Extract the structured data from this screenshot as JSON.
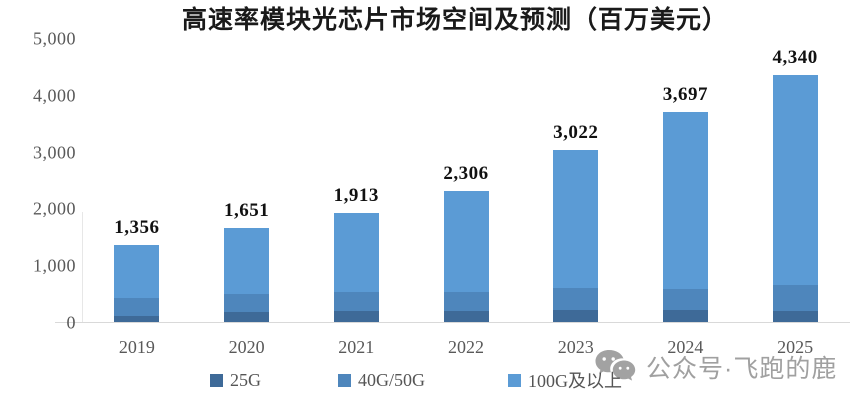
{
  "title": "高速率模块光芯片市场空间及预测（百万美元）",
  "watermark": {
    "icon": "wechat-icon",
    "text": "公众号·飞跑的鹿"
  },
  "chart_data": {
    "type": "bar",
    "stacked": true,
    "title": "高速率模块光芯片市场空间及预测（百万美元）",
    "categories": [
      "2019",
      "2020",
      "2021",
      "2022",
      "2023",
      "2024",
      "2025"
    ],
    "series": [
      {
        "name": "25G",
        "color": "#3E6A98",
        "values": [
          100,
          170,
          190,
          195,
          210,
          210,
          195
        ]
      },
      {
        "name": "40G/50G",
        "color": "#4E86BC",
        "values": [
          330,
          320,
          335,
          340,
          385,
          370,
          460
        ]
      },
      {
        "name": "100G及以上",
        "color": "#5B9BD5",
        "values": [
          926,
          1161,
          1388,
          1771,
          2427,
          3117,
          3685
        ]
      }
    ],
    "totals": [
      1356,
      1651,
      1913,
      2306,
      3022,
      3697,
      4340
    ],
    "total_labels": [
      "1,356",
      "1,651",
      "1,913",
      "2,306",
      "3,022",
      "3,697",
      "4,340"
    ],
    "ylim": [
      0,
      5000
    ],
    "ytick_values": [
      0,
      1000,
      2000,
      3000,
      4000,
      5000
    ],
    "ytick_labels": [
      "0",
      "1,000",
      "2,000",
      "3,000",
      "4,000",
      "5,000"
    ],
    "grid": false,
    "legend_position": "bottom"
  }
}
